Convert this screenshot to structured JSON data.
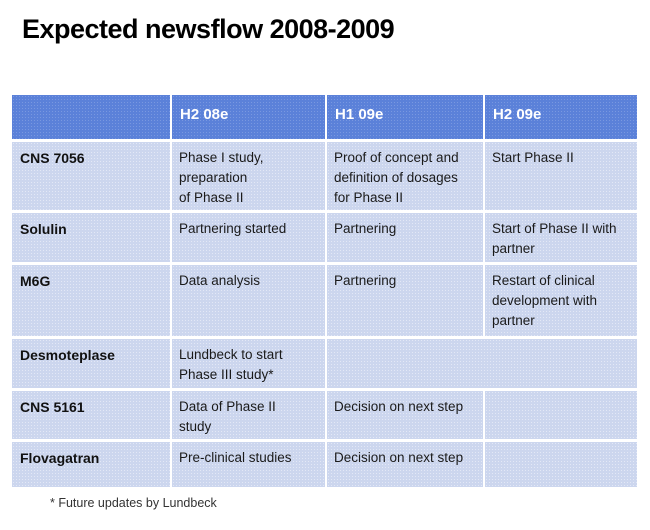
{
  "title": "Expected newsflow 2008-2009",
  "footnote": "* Future updates by Lundbeck",
  "colors": {
    "header_bg": "#5b81d9",
    "header_text": "#ffffff",
    "row_bg": "#ccd6ee",
    "body_text": "#1a1a1a"
  },
  "table": {
    "columns": [
      "H2 08e",
      "H1 09e",
      "H2 09e"
    ],
    "rows": [
      {
        "label": "CNS 7056",
        "cells": [
          "Phase I study,\npreparation\nof Phase II",
          "Proof of concept and\ndefinition of dosages\nfor Phase II",
          "Start Phase II"
        ]
      },
      {
        "label": "Solulin",
        "cells": [
          "Partnering started",
          "Partnering",
          "Start of Phase II with\npartner"
        ]
      },
      {
        "label": "M6G",
        "cells": [
          "Data analysis",
          "Partnering",
          "Restart of clinical\ndevelopment with\npartner"
        ]
      },
      {
        "label": "Desmoteplase",
        "cells": [
          "Lundbeck to start\nPhase III study*",
          "",
          ""
        ]
      },
      {
        "label": "CNS 5161",
        "cells": [
          "Data of Phase II\nstudy",
          "Decision on next step",
          ""
        ]
      },
      {
        "label": "Flovagatran",
        "cells": [
          "Pre-clinical studies",
          "Decision on next step",
          ""
        ]
      }
    ]
  }
}
